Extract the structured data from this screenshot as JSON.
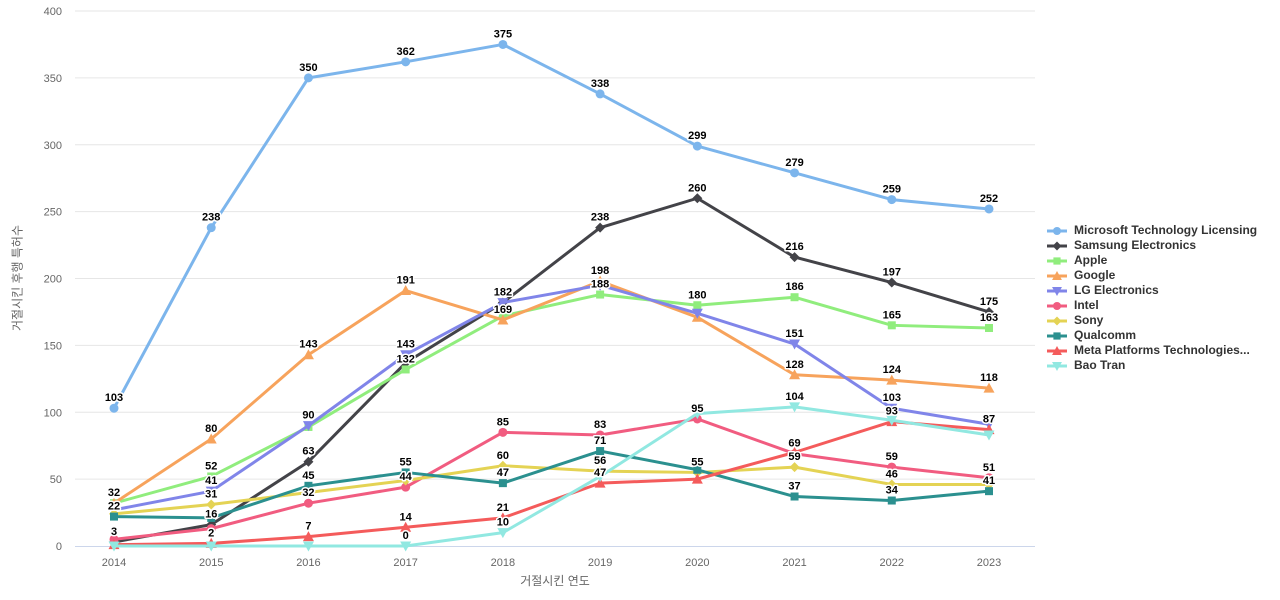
{
  "chart_data": {
    "type": "line",
    "title": "",
    "xlabel": "거절시킨 연도",
    "ylabel": "거절시킨 후행 특허수",
    "categories": [
      "2014",
      "2015",
      "2016",
      "2017",
      "2018",
      "2019",
      "2020",
      "2021",
      "2022",
      "2023"
    ],
    "ylim": [
      0,
      400
    ],
    "ytick_step": 50,
    "grid": true,
    "legend_position": "right",
    "series": [
      {
        "name": "Microsoft Technology Licensing",
        "color": "#7cb5ec",
        "marker": "circle",
        "values": [
          103,
          238,
          350,
          362,
          375,
          338,
          299,
          279,
          259,
          252
        ],
        "labels": [
          103,
          238,
          350,
          362,
          375,
          338,
          299,
          279,
          259,
          252
        ]
      },
      {
        "name": "Samsung Electronics",
        "color": "#434348",
        "marker": "diamond",
        "values": [
          3,
          16,
          63,
          137,
          182,
          238,
          260,
          216,
          197,
          175
        ],
        "labels": [
          3,
          16,
          63,
          null,
          182,
          238,
          260,
          216,
          197,
          175
        ]
      },
      {
        "name": "Apple",
        "color": "#90ed7d",
        "marker": "square",
        "values": [
          32,
          52,
          89,
          132,
          172,
          188,
          180,
          186,
          165,
          163
        ],
        "labels": [
          null,
          52,
          null,
          132,
          null,
          188,
          180,
          186,
          165,
          163
        ]
      },
      {
        "name": "Google",
        "color": "#f7a35c",
        "marker": "triangle",
        "values": [
          32,
          80,
          143,
          191,
          169,
          198,
          171,
          128,
          124,
          118
        ],
        "labels": [
          32,
          80,
          143,
          191,
          169,
          198,
          null,
          128,
          124,
          118
        ]
      },
      {
        "name": "LG Electronics",
        "color": "#8085e9",
        "marker": "triangle-down",
        "values": [
          27,
          41,
          90,
          143,
          182,
          195,
          174,
          151,
          103,
          91
        ],
        "labels": [
          null,
          41,
          90,
          143,
          null,
          null,
          null,
          151,
          103,
          null
        ]
      },
      {
        "name": "Intel",
        "color": "#f15c80",
        "marker": "circle",
        "values": [
          5,
          13,
          32,
          44,
          85,
          83,
          95,
          69,
          59,
          51
        ],
        "labels": [
          null,
          null,
          32,
          44,
          85,
          83,
          95,
          69,
          59,
          51
        ]
      },
      {
        "name": "Sony",
        "color": "#e4d354",
        "marker": "diamond",
        "values": [
          24,
          31,
          40,
          49,
          60,
          56,
          55,
          59,
          46,
          46
        ],
        "labels": [
          null,
          31,
          null,
          null,
          60,
          56,
          55,
          59,
          46,
          null
        ]
      },
      {
        "name": "Qualcomm",
        "color": "#2b908f",
        "marker": "square",
        "values": [
          22,
          21,
          45,
          55,
          47,
          71,
          57,
          37,
          34,
          41
        ],
        "labels": [
          22,
          null,
          45,
          55,
          47,
          71,
          null,
          37,
          34,
          41
        ]
      },
      {
        "name": "Meta Platforms Technologies...",
        "color": "#f45b5b",
        "marker": "triangle",
        "values": [
          1,
          2,
          7,
          14,
          21,
          47,
          50,
          70,
          93,
          87
        ],
        "labels": [
          null,
          2,
          7,
          14,
          21,
          47,
          null,
          null,
          93,
          87
        ]
      },
      {
        "name": "Bao Tran",
        "color": "#91e8e1",
        "marker": "triangle-down",
        "values": [
          0,
          0,
          0,
          0,
          10,
          52,
          99,
          104,
          94,
          83
        ],
        "labels": [
          null,
          null,
          null,
          0,
          10,
          null,
          null,
          104,
          null,
          null
        ]
      }
    ]
  }
}
